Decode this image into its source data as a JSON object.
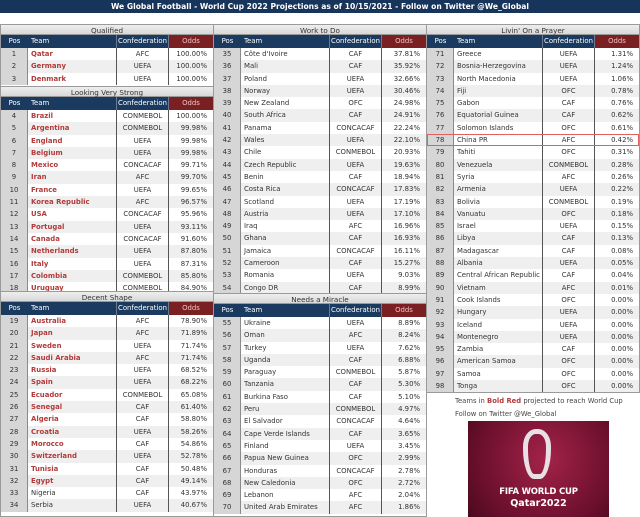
{
  "title": "We Global Football - World Cup 2022 Projections as of 10/15/2021 - Follow on Twitter @We_Global",
  "column_headers": {
    "pos": "Pos",
    "team": "Team",
    "confederation": "Confederation",
    "odds": "Odds"
  },
  "colors": {
    "header": "#1b3a60",
    "odds_header": "#7a2022",
    "qualified_team": "#b23a3a",
    "highlight_outline": "#e06060"
  },
  "highlighted_pos": 78,
  "panels": [
    {
      "sections": [
        {
          "title": "Qualified",
          "rows": [
            [
              1,
              "Qatar",
              "AFC",
              "100.00%",
              true
            ],
            [
              2,
              "Germany",
              "UEFA",
              "100.00%",
              true
            ],
            [
              3,
              "Denmark",
              "UEFA",
              "100.00%",
              true
            ]
          ]
        },
        {
          "title": "Looking Very Strong",
          "rows": [
            [
              4,
              "Brazil",
              "CONMEBOL",
              "100.00%",
              true
            ],
            [
              5,
              "Argentina",
              "CONMEBOL",
              "99.98%",
              true
            ],
            [
              6,
              "England",
              "UEFA",
              "99.98%",
              true
            ],
            [
              7,
              "Belgium",
              "UEFA",
              "99.98%",
              true
            ],
            [
              8,
              "Mexico",
              "CONCACAF",
              "99.71%",
              true
            ],
            [
              9,
              "Iran",
              "AFC",
              "99.70%",
              true
            ],
            [
              10,
              "France",
              "UEFA",
              "99.65%",
              true
            ],
            [
              11,
              "Korea Republic",
              "AFC",
              "96.57%",
              true
            ],
            [
              12,
              "USA",
              "CONCACAF",
              "95.96%",
              true
            ],
            [
              13,
              "Portugal",
              "UEFA",
              "93.11%",
              true
            ],
            [
              14,
              "Canada",
              "CONCACAF",
              "91.60%",
              true
            ],
            [
              15,
              "Netherlands",
              "UEFA",
              "87.80%",
              true
            ],
            [
              16,
              "Italy",
              "UEFA",
              "87.31%",
              true
            ],
            [
              17,
              "Colombia",
              "CONMEBOL",
              "85.80%",
              true
            ],
            [
              18,
              "Uruguay",
              "CONMEBOL",
              "84.90%",
              true
            ]
          ]
        },
        {
          "title": "Decent Shape",
          "rows": [
            [
              19,
              "Australia",
              "AFC",
              "78.90%",
              true
            ],
            [
              20,
              "Japan",
              "AFC",
              "71.89%",
              true
            ],
            [
              21,
              "Sweden",
              "UEFA",
              "71.74%",
              true
            ],
            [
              22,
              "Saudi Arabia",
              "AFC",
              "71.74%",
              true
            ],
            [
              23,
              "Russia",
              "UEFA",
              "68.52%",
              true
            ],
            [
              24,
              "Spain",
              "UEFA",
              "68.22%",
              true
            ],
            [
              25,
              "Ecuador",
              "CONMEBOL",
              "65.08%",
              true
            ],
            [
              26,
              "Senegal",
              "CAF",
              "61.40%",
              true
            ],
            [
              27,
              "Algeria",
              "CAF",
              "58.80%",
              true
            ],
            [
              28,
              "Croatia",
              "UEFA",
              "58.26%",
              true
            ],
            [
              29,
              "Morocco",
              "CAF",
              "54.86%",
              true
            ],
            [
              30,
              "Switzerland",
              "UEFA",
              "52.78%",
              true
            ],
            [
              31,
              "Tunisia",
              "CAF",
              "50.48%",
              true
            ],
            [
              32,
              "Egypt",
              "CAF",
              "49.14%",
              true
            ],
            [
              33,
              "Nigeria",
              "CAF",
              "43.97%",
              false
            ],
            [
              34,
              "Serbia",
              "UEFA",
              "40.67%",
              false
            ]
          ]
        }
      ]
    },
    {
      "sections": [
        {
          "title": "Work to Do",
          "rows": [
            [
              35,
              "Côte d'Ivoire",
              "CAF",
              "37.81%",
              false
            ],
            [
              36,
              "Mali",
              "CAF",
              "35.92%",
              false
            ],
            [
              37,
              "Poland",
              "UEFA",
              "32.66%",
              false
            ],
            [
              38,
              "Norway",
              "UEFA",
              "30.46%",
              false
            ],
            [
              39,
              "New Zealand",
              "OFC",
              "24.98%",
              false
            ],
            [
              40,
              "South Africa",
              "CAF",
              "24.91%",
              false
            ],
            [
              41,
              "Panama",
              "CONCACAF",
              "22.24%",
              false
            ],
            [
              42,
              "Wales",
              "UEFA",
              "22.10%",
              false
            ],
            [
              43,
              "Chile",
              "CONMEBOL",
              "20.93%",
              false
            ],
            [
              44,
              "Czech Republic",
              "UEFA",
              "19.63%",
              false
            ],
            [
              45,
              "Benin",
              "CAF",
              "18.94%",
              false
            ],
            [
              46,
              "Costa Rica",
              "CONCACAF",
              "17.83%",
              false
            ],
            [
              47,
              "Scotland",
              "UEFA",
              "17.19%",
              false
            ],
            [
              48,
              "Austria",
              "UEFA",
              "17.10%",
              false
            ],
            [
              49,
              "Iraq",
              "AFC",
              "16.96%",
              false
            ],
            [
              50,
              "Ghana",
              "CAF",
              "16.93%",
              false
            ],
            [
              51,
              "Jamaica",
              "CONCACAF",
              "16.11%",
              false
            ],
            [
              52,
              "Cameroon",
              "CAF",
              "15.27%",
              false
            ],
            [
              53,
              "Romania",
              "UEFA",
              "9.03%",
              false
            ],
            [
              54,
              "Congo DR",
              "CAF",
              "8.99%",
              false
            ]
          ]
        },
        {
          "title": "Needs a Miracle",
          "rows": [
            [
              55,
              "Ukraine",
              "UEFA",
              "8.89%",
              false
            ],
            [
              56,
              "Oman",
              "AFC",
              "8.24%",
              false
            ],
            [
              57,
              "Turkey",
              "UEFA",
              "7.62%",
              false
            ],
            [
              58,
              "Uganda",
              "CAF",
              "6.88%",
              false
            ],
            [
              59,
              "Paraguay",
              "CONMEBOL",
              "5.87%",
              false
            ],
            [
              60,
              "Tanzania",
              "CAF",
              "5.30%",
              false
            ],
            [
              61,
              "Burkina Faso",
              "CAF",
              "5.10%",
              false
            ],
            [
              62,
              "Peru",
              "CONMEBOL",
              "4.97%",
              false
            ],
            [
              63,
              "El Salvador",
              "CONCACAF",
              "4.64%",
              false
            ],
            [
              64,
              "Cape Verde Islands",
              "CAF",
              "3.65%",
              false
            ],
            [
              65,
              "Finland",
              "UEFA",
              "3.45%",
              false
            ],
            [
              66,
              "Papua New Guinea",
              "OFC",
              "2.99%",
              false
            ],
            [
              67,
              "Honduras",
              "CONCACAF",
              "2.78%",
              false
            ],
            [
              68,
              "New Caledonia",
              "OFC",
              "2.72%",
              false
            ],
            [
              69,
              "Lebanon",
              "AFC",
              "2.04%",
              false
            ],
            [
              70,
              "United Arab Emirates",
              "AFC",
              "1.86%",
              false
            ]
          ]
        }
      ]
    },
    {
      "sections": [
        {
          "title": "Livin' On a Prayer",
          "rows": [
            [
              71,
              "Greece",
              "UEFA",
              "1.31%",
              false
            ],
            [
              72,
              "Bosnia-Herzegovina",
              "UEFA",
              "1.24%",
              false
            ],
            [
              73,
              "North Macedonia",
              "UEFA",
              "1.06%",
              false
            ],
            [
              74,
              "Fiji",
              "OFC",
              "0.78%",
              false
            ],
            [
              75,
              "Gabon",
              "CAF",
              "0.76%",
              false
            ],
            [
              76,
              "Equatorial Guinea",
              "CAF",
              "0.62%",
              false
            ],
            [
              77,
              "Solomon Islands",
              "OFC",
              "0.61%",
              false
            ],
            [
              78,
              "China PR",
              "AFC",
              "0.42%",
              false
            ],
            [
              79,
              "Tahiti",
              "OFC",
              "0.31%",
              false
            ],
            [
              80,
              "Venezuela",
              "CONMEBOL",
              "0.28%",
              false
            ],
            [
              81,
              "Syria",
              "AFC",
              "0.26%",
              false
            ],
            [
              82,
              "Armenia",
              "UEFA",
              "0.22%",
              false
            ],
            [
              83,
              "Bolivia",
              "CONMEBOL",
              "0.19%",
              false
            ],
            [
              84,
              "Vanuatu",
              "OFC",
              "0.18%",
              false
            ],
            [
              85,
              "Israel",
              "UEFA",
              "0.15%",
              false
            ],
            [
              86,
              "Libya",
              "CAF",
              "0.13%",
              false
            ],
            [
              87,
              "Madagascar",
              "CAF",
              "0.08%",
              false
            ],
            [
              88,
              "Albania",
              "UEFA",
              "0.05%",
              false
            ],
            [
              89,
              "Central African Republic",
              "CAF",
              "0.04%",
              false
            ],
            [
              90,
              "Vietnam",
              "AFC",
              "0.01%",
              false
            ],
            [
              91,
              "Cook Islands",
              "OFC",
              "0.00%",
              false
            ],
            [
              92,
              "Hungary",
              "UEFA",
              "0.00%",
              false
            ],
            [
              93,
              "Iceland",
              "UEFA",
              "0.00%",
              false
            ],
            [
              94,
              "Montenegro",
              "UEFA",
              "0.00%",
              false
            ],
            [
              95,
              "Zambia",
              "CAF",
              "0.00%",
              false
            ],
            [
              96,
              "American Samoa",
              "OFC",
              "0.00%",
              false
            ],
            [
              97,
              "Samoa",
              "OFC",
              "0.00%",
              false
            ],
            [
              98,
              "Tonga",
              "OFC",
              "0.00%",
              false
            ]
          ]
        }
      ]
    }
  ],
  "notes": {
    "legend_prefix": "Teams in ",
    "legend_highlight": "Bold Red",
    "legend_suffix": " projected to reach World Cup",
    "follow": "Follow on Twitter @We_Global"
  },
  "logo": {
    "line1": "FIFA WORLD CUP",
    "line2": "Qatar2022"
  }
}
